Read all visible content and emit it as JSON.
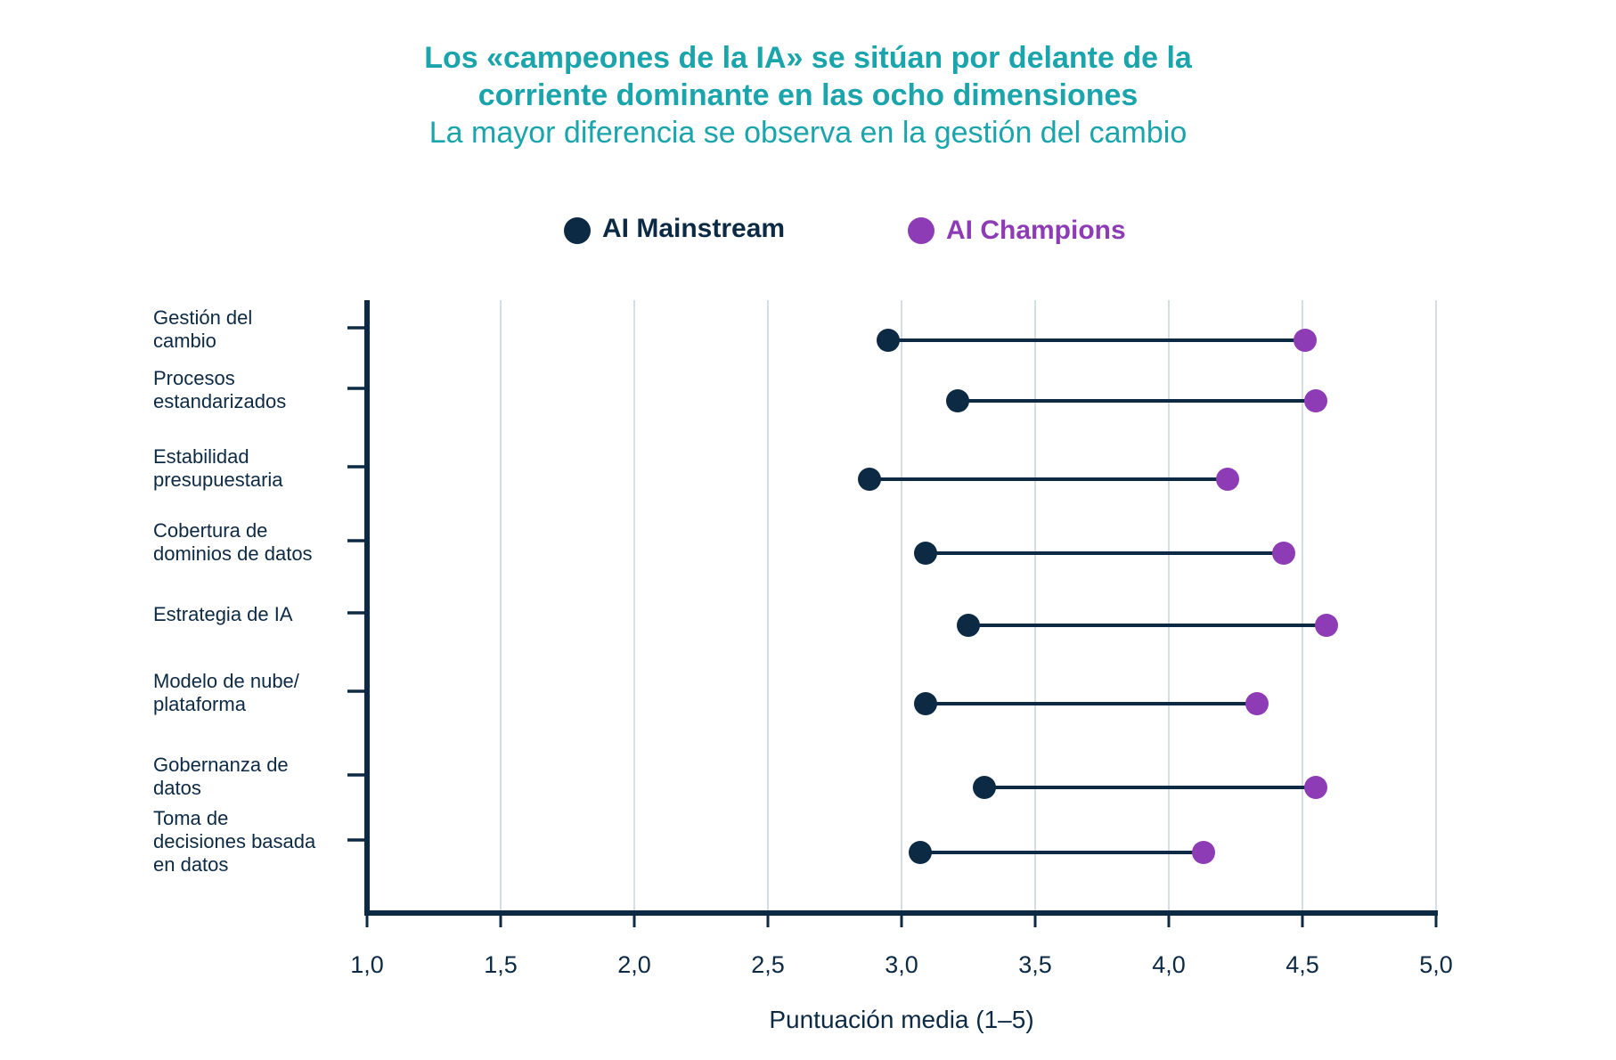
{
  "chart_data": {
    "type": "dumbbell",
    "title_line1": "Los «campeones de la IA» se sitúan por delante de la",
    "title_line2": "corriente dominante en las ocho dimensiones",
    "subtitle": "La mayor diferencia se observa en la gestión del cambio",
    "xlabel": "Puntuación media (1–5)",
    "xlim": [
      1.0,
      5.0
    ],
    "xticks": [
      "1,0",
      "1,5",
      "2,0",
      "2,5",
      "3,0",
      "3,5",
      "4,0",
      "4,5",
      "5,0"
    ],
    "grid": "vertical",
    "legend_position": "top",
    "categories": [
      [
        "Gestión del",
        "cambio"
      ],
      [
        "Procesos",
        "estandarizados"
      ],
      [
        "Estabilidad",
        "presupuestaria"
      ],
      [
        "Cobertura de",
        "dominios de datos"
      ],
      [
        "Estrategia de IA"
      ],
      [
        "Modelo de nube/",
        "plataforma"
      ],
      [
        "Gobernanza de",
        "datos"
      ],
      [
        "Toma de",
        "decisiones basada",
        "en datos"
      ]
    ],
    "series": [
      {
        "name": "AI Mainstream",
        "color": "#0d2a45",
        "values": [
          2.95,
          3.21,
          2.88,
          3.09,
          3.25,
          3.09,
          3.31,
          3.07
        ]
      },
      {
        "name": "AI Champions",
        "color": "#8e3cb5",
        "values": [
          4.51,
          4.55,
          4.22,
          4.43,
          4.59,
          4.33,
          4.55,
          4.13
        ]
      }
    ]
  }
}
